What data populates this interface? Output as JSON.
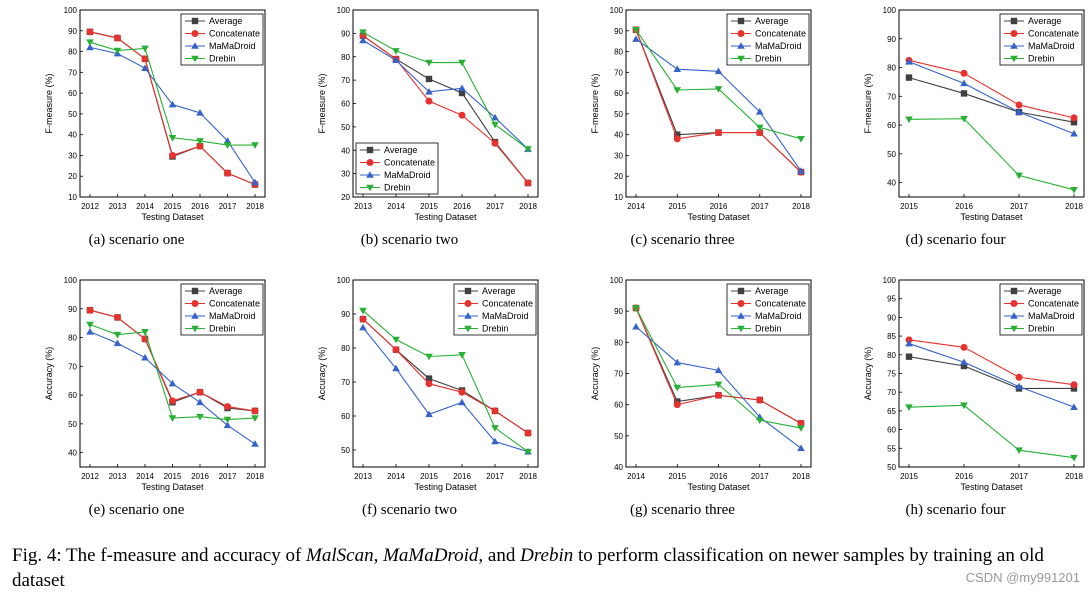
{
  "colors": {
    "Average": "#404040",
    "Concatenate": "#e8322e",
    "MaMaDroid": "#3563c9",
    "Drebin": "#27b034"
  },
  "figure_caption": {
    "prefix": "Fig. 4: The f-measure and accuracy of ",
    "name1": "MalScan",
    "sep1": ", ",
    "name2": "MaMaDroid",
    "sep2": ", and ",
    "name3": "Drebin",
    "suffix": " to perform classification on newer samples by training an old dataset"
  },
  "watermark": "CSDN @my991201",
  "chart_data": [
    {
      "type": "line",
      "caption": "(a)  scenario one",
      "xlabel": "Testing Dataset",
      "ylabel": "F-measure (%)",
      "categories": [
        "2012",
        "2013",
        "2014",
        "2015",
        "2016",
        "2017",
        "2018"
      ],
      "ylim": [
        10,
        100
      ],
      "yticks": [
        10,
        20,
        30,
        40,
        50,
        60,
        70,
        80,
        90,
        100
      ],
      "legend_position": "top-right",
      "series": [
        {
          "name": "Average",
          "marker": "square",
          "values": [
            89.5,
            86.5,
            76.5,
            29.5,
            34.5,
            21.5,
            16
          ]
        },
        {
          "name": "Concatenate",
          "marker": "circle",
          "values": [
            89.5,
            86.5,
            76.5,
            30,
            34.5,
            21.5,
            16
          ]
        },
        {
          "name": "MaMaDroid",
          "marker": "triangle-up",
          "values": [
            82,
            79,
            72,
            54.5,
            50.5,
            37,
            17
          ]
        },
        {
          "name": "Drebin",
          "marker": "triangle-down",
          "values": [
            84.5,
            80.5,
            81.5,
            38.5,
            37,
            35,
            35
          ]
        }
      ]
    },
    {
      "type": "line",
      "caption": "(b)  scenario two",
      "xlabel": "Testing Dataset",
      "ylabel": "F-measure (%)",
      "categories": [
        "2013",
        "2014",
        "2015",
        "2016",
        "2017",
        "2018"
      ],
      "ylim": [
        20,
        100
      ],
      "yticks": [
        20,
        30,
        40,
        50,
        60,
        70,
        80,
        90,
        100
      ],
      "legend_position": "bottom-left",
      "series": [
        {
          "name": "Average",
          "marker": "square",
          "values": [
            89,
            79,
            70.5,
            64.5,
            43.5,
            26
          ]
        },
        {
          "name": "Concatenate",
          "marker": "circle",
          "values": [
            89,
            79,
            61,
            55,
            43,
            26
          ]
        },
        {
          "name": "MaMaDroid",
          "marker": "triangle-up",
          "values": [
            87,
            78.5,
            65,
            66.5,
            54,
            40.5
          ]
        },
        {
          "name": "Drebin",
          "marker": "triangle-down",
          "values": [
            90.5,
            82.5,
            77.5,
            77.5,
            51,
            40.5
          ]
        }
      ]
    },
    {
      "type": "line",
      "caption": "(c)  scenario three",
      "xlabel": "Testing Dataset",
      "ylabel": "F-measure (%)",
      "categories": [
        "2014",
        "2015",
        "2016",
        "2017",
        "2018"
      ],
      "ylim": [
        10,
        100
      ],
      "yticks": [
        10,
        20,
        30,
        40,
        50,
        60,
        70,
        80,
        90,
        100
      ],
      "legend_position": "top-right",
      "series": [
        {
          "name": "Average",
          "marker": "square",
          "values": [
            90.5,
            40,
            41,
            41,
            22
          ]
        },
        {
          "name": "Concatenate",
          "marker": "circle",
          "values": [
            90.5,
            38,
            41,
            41,
            22
          ]
        },
        {
          "name": "MaMaDroid",
          "marker": "triangle-up",
          "values": [
            86,
            71.5,
            70.5,
            51,
            22.5
          ]
        },
        {
          "name": "Drebin",
          "marker": "triangle-down",
          "values": [
            90.5,
            61.5,
            62,
            43.5,
            38
          ]
        }
      ]
    },
    {
      "type": "line",
      "caption": "(d)  scenario four",
      "xlabel": "Testing Dataset",
      "ylabel": "F-measure (%)",
      "categories": [
        "2015",
        "2016",
        "2017",
        "2018"
      ],
      "ylim": [
        35,
        100
      ],
      "yticks": [
        40,
        50,
        60,
        70,
        80,
        90,
        100
      ],
      "legend_position": "top-right",
      "series": [
        {
          "name": "Average",
          "marker": "square",
          "values": [
            76.5,
            71,
            64.5,
            61
          ]
        },
        {
          "name": "Concatenate",
          "marker": "circle",
          "values": [
            82.5,
            78,
            67,
            62.5
          ]
        },
        {
          "name": "MaMaDroid",
          "marker": "triangle-up",
          "values": [
            82,
            74.5,
            64.5,
            57
          ]
        },
        {
          "name": "Drebin",
          "marker": "triangle-down",
          "values": [
            62,
            62.2,
            42.5,
            37.5
          ]
        }
      ]
    },
    {
      "type": "line",
      "caption": "(e)  scenario one",
      "xlabel": "Testing Dataset",
      "ylabel": "Accuracy (%)",
      "categories": [
        "2012",
        "2013",
        "2014",
        "2015",
        "2016",
        "2017",
        "2018"
      ],
      "ylim": [
        35,
        100
      ],
      "yticks": [
        40,
        50,
        60,
        70,
        80,
        90,
        100
      ],
      "legend_position": "top-right",
      "series": [
        {
          "name": "Average",
          "marker": "square",
          "values": [
            89.5,
            87,
            79.5,
            57.5,
            61,
            55.5,
            54.5
          ]
        },
        {
          "name": "Concatenate",
          "marker": "circle",
          "values": [
            89.5,
            87,
            79.5,
            58,
            61,
            56,
            54.5
          ]
        },
        {
          "name": "MaMaDroid",
          "marker": "triangle-up",
          "values": [
            82,
            78,
            73,
            64,
            57.5,
            49.5,
            43
          ]
        },
        {
          "name": "Drebin",
          "marker": "triangle-down",
          "values": [
            84.5,
            81,
            82,
            52,
            52.5,
            51.5,
            52
          ]
        }
      ]
    },
    {
      "type": "line",
      "caption": "(f)  scenario two",
      "xlabel": "Testing Dataset",
      "ylabel": "Accuracy (%)",
      "categories": [
        "2013",
        "2014",
        "2015",
        "2016",
        "2017",
        "2018"
      ],
      "ylim": [
        45,
        100
      ],
      "yticks": [
        50,
        60,
        70,
        80,
        90,
        100
      ],
      "legend_position": "top-right",
      "series": [
        {
          "name": "Average",
          "marker": "square",
          "values": [
            88.5,
            79.5,
            71,
            67.5,
            61.5,
            55
          ]
        },
        {
          "name": "Concatenate",
          "marker": "circle",
          "values": [
            88.5,
            79.5,
            69.5,
            67,
            61.5,
            55
          ]
        },
        {
          "name": "MaMaDroid",
          "marker": "triangle-up",
          "values": [
            86,
            74,
            60.5,
            64,
            52.5,
            49.5
          ]
        },
        {
          "name": "Drebin",
          "marker": "triangle-down",
          "values": [
            91,
            82.5,
            77.5,
            78,
            56.5,
            49.5
          ]
        }
      ]
    },
    {
      "type": "line",
      "caption": "(g)  scenario three",
      "xlabel": "Testing Dataset",
      "ylabel": "Accuracy (%)",
      "categories": [
        "2014",
        "2015",
        "2016",
        "2017",
        "2018"
      ],
      "ylim": [
        40,
        100
      ],
      "yticks": [
        40,
        50,
        60,
        70,
        80,
        90,
        100
      ],
      "legend_position": "top-right",
      "series": [
        {
          "name": "Average",
          "marker": "square",
          "values": [
            91,
            61,
            63,
            61.5,
            54
          ]
        },
        {
          "name": "Concatenate",
          "marker": "circle",
          "values": [
            91,
            60,
            63,
            61.5,
            54
          ]
        },
        {
          "name": "MaMaDroid",
          "marker": "triangle-up",
          "values": [
            85,
            73.5,
            71,
            56,
            46
          ]
        },
        {
          "name": "Drebin",
          "marker": "triangle-down",
          "values": [
            91,
            65.5,
            66.5,
            55,
            52.5
          ]
        }
      ]
    },
    {
      "type": "line",
      "caption": "(h)  scenario four",
      "xlabel": "Testing Dataset",
      "ylabel": "Accuracy (%)",
      "categories": [
        "2015",
        "2016",
        "2017",
        "2018"
      ],
      "ylim": [
        50,
        100
      ],
      "yticks": [
        50,
        55,
        60,
        65,
        70,
        75,
        80,
        85,
        90,
        95,
        100
      ],
      "legend_position": "top-right",
      "series": [
        {
          "name": "Average",
          "marker": "square",
          "values": [
            79.5,
            77,
            71,
            71
          ]
        },
        {
          "name": "Concatenate",
          "marker": "circle",
          "values": [
            84,
            82,
            74,
            72
          ]
        },
        {
          "name": "MaMaDroid",
          "marker": "triangle-up",
          "values": [
            83,
            78,
            71.5,
            66
          ]
        },
        {
          "name": "Drebin",
          "marker": "triangle-down",
          "values": [
            66,
            66.5,
            54.5,
            52.5
          ]
        }
      ]
    }
  ]
}
